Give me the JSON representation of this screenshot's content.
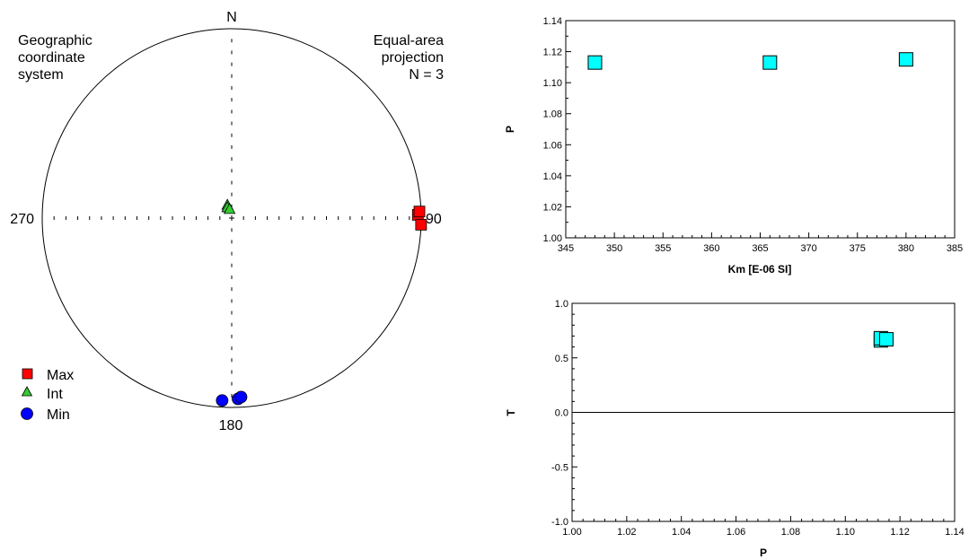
{
  "chart_data": [
    {
      "type": "scatter",
      "subtype": "stereonet",
      "coordinate_system_text": [
        "Geographic",
        "coordinate",
        "system"
      ],
      "projection_text": [
        "Equal-area",
        "projection",
        "N = 3"
      ],
      "direction_labels": {
        "north": "N",
        "east": "90",
        "south": "180",
        "west": "270"
      },
      "legend": [
        {
          "name": "Max",
          "marker": "square",
          "color": "#ff0000"
        },
        {
          "name": "Int",
          "marker": "triangle",
          "color": "#33cc33"
        },
        {
          "name": "Min",
          "marker": "circle",
          "color": "#0000ff"
        }
      ],
      "legend_placement": "bottom-left",
      "points": {
        "Max": [
          {
            "dec": 89,
            "inc": 2
          },
          {
            "dec": 88,
            "inc": 1
          },
          {
            "dec": 92,
            "inc": 0
          }
        ],
        "Int": [
          {
            "dec": 342,
            "inc": 84
          },
          {
            "dec": 338,
            "inc": 85
          },
          {
            "dec": 347,
            "inc": 86
          }
        ],
        "Min": [
          {
            "dec": 183,
            "inc": 4
          },
          {
            "dec": 178,
            "inc": 5
          },
          {
            "dec": 177,
            "inc": 6
          }
        ]
      }
    },
    {
      "type": "scatter",
      "xlabel": "Km [E-06 SI]",
      "ylabel": "P",
      "xlim": [
        345,
        385
      ],
      "ylim": [
        1.0,
        1.14
      ],
      "xticks": [
        "345",
        "350",
        "355",
        "360",
        "365",
        "370",
        "375",
        "380",
        "385"
      ],
      "yticks": [
        "1.00",
        "1.02",
        "1.04",
        "1.06",
        "1.08",
        "1.10",
        "1.12",
        "1.14"
      ],
      "marker_color": "#00ffff",
      "x": [
        348,
        366,
        380
      ],
      "y": [
        1.113,
        1.113,
        1.115
      ]
    },
    {
      "type": "scatter",
      "xlabel": "P",
      "ylabel": "T",
      "xlim": [
        1.0,
        1.14
      ],
      "ylim": [
        -1.0,
        1.0
      ],
      "xticks": [
        "1.00",
        "1.02",
        "1.04",
        "1.06",
        "1.08",
        "1.10",
        "1.12",
        "1.14"
      ],
      "yticks": [
        "-1.0",
        "-0.5",
        "0.0",
        "0.5",
        "1.0"
      ],
      "zero_line": true,
      "marker_color": "#00ffff",
      "x": [
        1.113,
        1.113,
        1.115
      ],
      "y": [
        0.66,
        0.68,
        0.67
      ]
    }
  ]
}
